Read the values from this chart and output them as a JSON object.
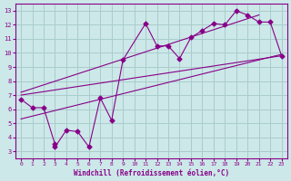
{
  "xlabel": "Windchill (Refroidissement éolien,°C)",
  "bg_color": "#cce8e8",
  "grid_color": "#aacccc",
  "line_color": "#880088",
  "xlim": [
    -0.5,
    23.5
  ],
  "ylim": [
    2.5,
    13.5
  ],
  "xticks": [
    0,
    1,
    2,
    3,
    4,
    5,
    6,
    7,
    8,
    9,
    10,
    11,
    12,
    13,
    14,
    15,
    16,
    17,
    18,
    19,
    20,
    21,
    22,
    23
  ],
  "yticks": [
    3,
    4,
    5,
    6,
    7,
    8,
    9,
    10,
    11,
    12,
    13
  ],
  "scatter_x": [
    0,
    1,
    2,
    3,
    3,
    4,
    5,
    6,
    7,
    8,
    9,
    11,
    12,
    13,
    14,
    15,
    16,
    17,
    18,
    19,
    20,
    21,
    22,
    23
  ],
  "scatter_y": [
    6.7,
    6.1,
    6.1,
    3.5,
    3.3,
    4.5,
    4.4,
    3.3,
    6.8,
    5.2,
    9.5,
    12.1,
    10.5,
    10.5,
    9.6,
    11.1,
    11.6,
    12.1,
    12.0,
    13.0,
    12.7,
    12.2,
    12.2,
    9.8
  ],
  "tline1_x": [
    0,
    23
  ],
  "tline1_y": [
    7.0,
    9.8
  ],
  "tline2_x": [
    0,
    21
  ],
  "tline2_y": [
    7.2,
    12.7
  ],
  "tline3_x": [
    0,
    23
  ],
  "tline3_y": [
    5.3,
    9.9
  ]
}
